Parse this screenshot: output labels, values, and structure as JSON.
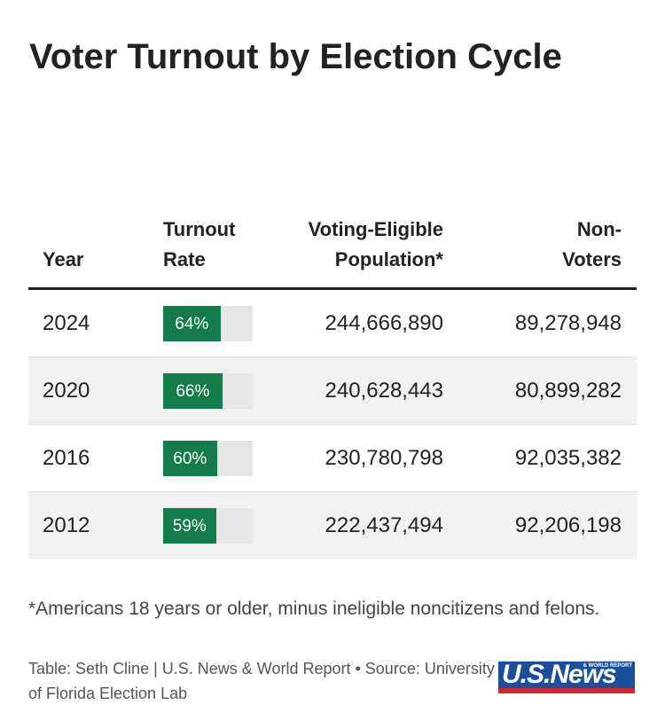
{
  "header": {
    "title": "Voter Turnout by Election Cycle"
  },
  "table": {
    "columns": [
      "Year",
      "Turnout Rate",
      "Voting-Eligible Population*",
      "Non-Voters"
    ],
    "bar_range": [
      0,
      100
    ],
    "bar_color": "#137c4a",
    "rows": [
      {
        "year": "2024",
        "turnout": {
          "value": 64,
          "label": "64%"
        },
        "eligible": "244,666,890",
        "non_voters": "89,278,948"
      },
      {
        "year": "2020",
        "turnout": {
          "value": 66,
          "label": "66%"
        },
        "eligible": "240,628,443",
        "non_voters": "80,899,282"
      },
      {
        "year": "2016",
        "turnout": {
          "value": 60,
          "label": "60%"
        },
        "eligible": "230,780,798",
        "non_voters": "92,035,382"
      },
      {
        "year": "2012",
        "turnout": {
          "value": 59,
          "label": "59%"
        },
        "eligible": "222,437,494",
        "non_voters": "92,206,198"
      }
    ]
  },
  "footnote": "*Americans 18 years or older, minus ineligible noncitizens and felons.",
  "credit": "Table: Seth Cline | U.S. News & World Report • Source: University of Florida Election Lab",
  "logo": {
    "main": "U.S.News",
    "sub": "& WORLD REPORT"
  }
}
